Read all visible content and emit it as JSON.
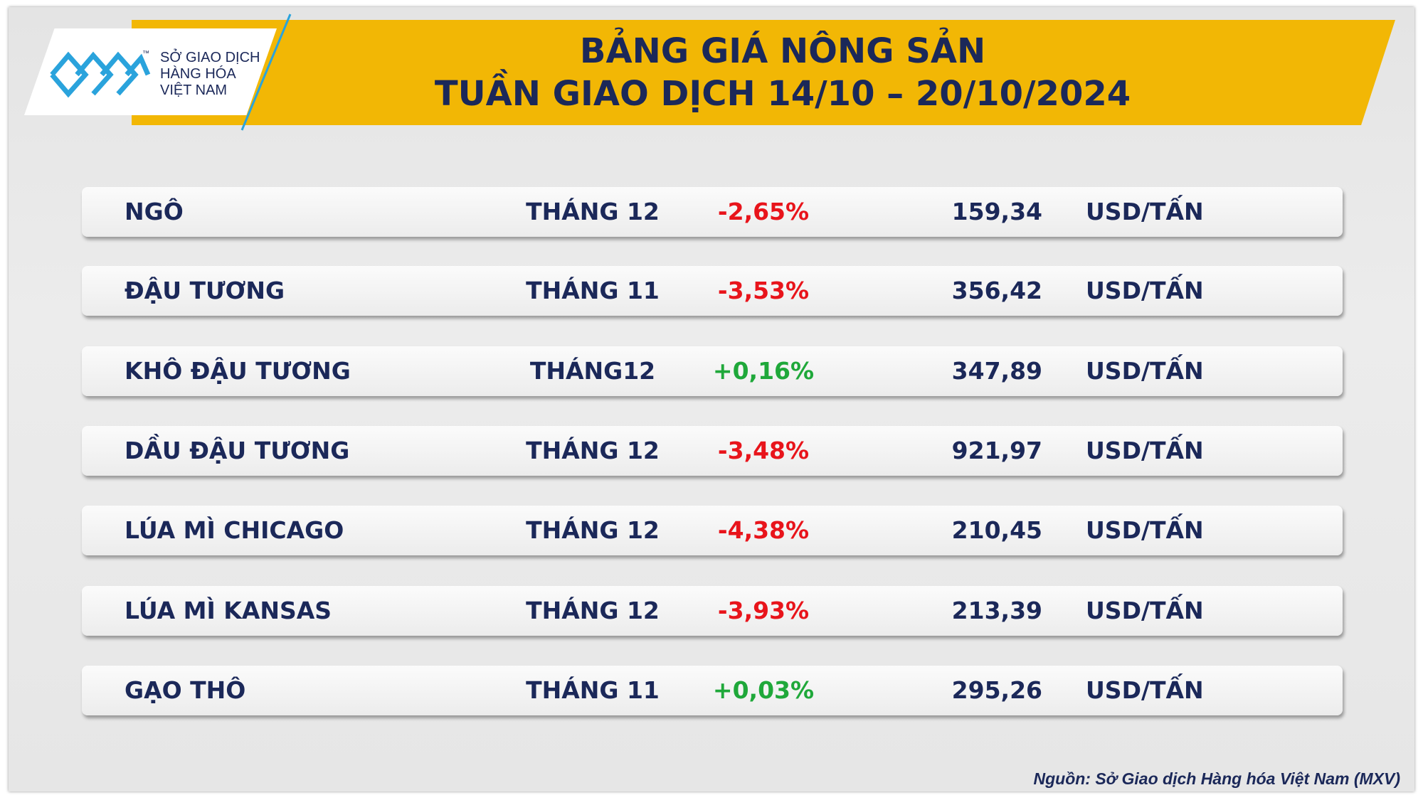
{
  "header": {
    "logo": {
      "tm": "™",
      "lines": [
        "SỞ GIAO DỊCH",
        "HÀNG HÓA",
        "VIỆT NAM"
      ]
    },
    "title": [
      "BẢNG GIÁ NÔNG SẢN",
      "TUẦN GIAO DỊCH 14/10 – 20/10/2024"
    ]
  },
  "table": {
    "rows": [
      {
        "commodity": "NGÔ",
        "contract": "THÁNG 12",
        "change": "-2,65%",
        "change_color": "#e8141b",
        "price": "159,34",
        "unit": "USD/TẤN"
      },
      {
        "commodity": "ĐẬU TƯƠNG",
        "contract": "THÁNG 11",
        "change": "-3,53%",
        "change_color": "#e8141b",
        "price": "356,42",
        "unit": "USD/TẤN"
      },
      {
        "commodity": "KHÔ ĐẬU TƯƠNG",
        "contract": "THÁNG12",
        "change": "+0,16%",
        "change_color": "#1fa83a",
        "price": "347,89",
        "unit": "USD/TẤN"
      },
      {
        "commodity": "DẦU ĐẬU TƯƠNG",
        "contract": "THÁNG 12",
        "change": "-3,48%",
        "change_color": "#e8141b",
        "price": "921,97",
        "unit": "USD/TẤN"
      },
      {
        "commodity": "LÚA MÌ CHICAGO",
        "contract": "THÁNG 12",
        "change": "-4,38%",
        "change_color": "#e8141b",
        "price": "210,45",
        "unit": "USD/TẤN"
      },
      {
        "commodity": "LÚA MÌ KANSAS",
        "contract": "THÁNG 12",
        "change": "-3,93%",
        "change_color": "#e8141b",
        "price": "213,39",
        "unit": "USD/TẤN"
      },
      {
        "commodity": "GẠO THÔ",
        "contract": "THÁNG 11",
        "change": "+0,03%",
        "change_color": "#1fa83a",
        "price": "295,26",
        "unit": "USD/TẤN"
      }
    ]
  },
  "source": "Nguồn: Sở Giao dịch Hàng hóa Việt Nam (MXV)"
}
